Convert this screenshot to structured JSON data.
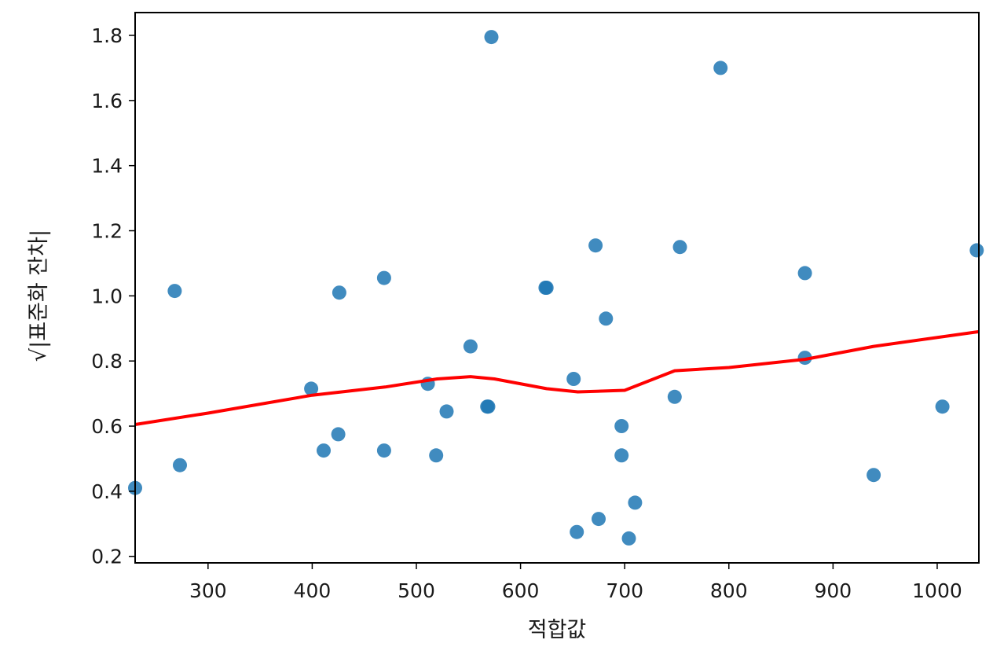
{
  "chart_data": {
    "type": "scatter",
    "title": "",
    "xlabel": "적합값",
    "ylabel": "√|표준화 잔차|",
    "xlim": [
      230,
      1040
    ],
    "ylim": [
      0.18,
      1.87
    ],
    "xticks": [
      300,
      400,
      500,
      600,
      700,
      800,
      900,
      1000
    ],
    "yticks": [
      0.2,
      0.4,
      0.6,
      0.8,
      1.0,
      1.2,
      1.4,
      1.6,
      1.8
    ],
    "xtick_labels": [
      "300",
      "400",
      "500",
      "600",
      "700",
      "800",
      "900",
      "1000"
    ],
    "ytick_labels": [
      "0.2",
      "0.4",
      "0.6",
      "0.8",
      "1.0",
      "1.2",
      "1.4",
      "1.6",
      "1.8"
    ],
    "grid": false,
    "point_color": "#1f77b4",
    "line_color": "#ff0000",
    "points": [
      {
        "x": 230,
        "y": 0.41
      },
      {
        "x": 268,
        "y": 1.015
      },
      {
        "x": 273,
        "y": 0.48
      },
      {
        "x": 399,
        "y": 0.715
      },
      {
        "x": 411,
        "y": 0.525
      },
      {
        "x": 425,
        "y": 0.575
      },
      {
        "x": 426,
        "y": 1.01
      },
      {
        "x": 469,
        "y": 1.055
      },
      {
        "x": 469,
        "y": 0.525
      },
      {
        "x": 511,
        "y": 0.73
      },
      {
        "x": 519,
        "y": 0.51
      },
      {
        "x": 529,
        "y": 0.645
      },
      {
        "x": 552,
        "y": 0.845
      },
      {
        "x": 568,
        "y": 0.66
      },
      {
        "x": 569,
        "y": 0.66
      },
      {
        "x": 572,
        "y": 1.795
      },
      {
        "x": 624,
        "y": 1.025
      },
      {
        "x": 625,
        "y": 1.025
      },
      {
        "x": 651,
        "y": 0.745
      },
      {
        "x": 654,
        "y": 0.275
      },
      {
        "x": 672,
        "y": 1.155
      },
      {
        "x": 675,
        "y": 0.315
      },
      {
        "x": 682,
        "y": 0.93
      },
      {
        "x": 697,
        "y": 0.6
      },
      {
        "x": 697,
        "y": 0.51
      },
      {
        "x": 704,
        "y": 0.255
      },
      {
        "x": 710,
        "y": 0.365
      },
      {
        "x": 748,
        "y": 0.69
      },
      {
        "x": 753,
        "y": 1.15
      },
      {
        "x": 792,
        "y": 1.7
      },
      {
        "x": 873,
        "y": 1.07
      },
      {
        "x": 873,
        "y": 0.81
      },
      {
        "x": 939,
        "y": 0.45
      },
      {
        "x": 1005,
        "y": 0.66
      },
      {
        "x": 1038,
        "y": 1.14
      }
    ],
    "lowess": [
      {
        "x": 230,
        "y": 0.605
      },
      {
        "x": 300,
        "y": 0.64
      },
      {
        "x": 400,
        "y": 0.695
      },
      {
        "x": 470,
        "y": 0.72
      },
      {
        "x": 520,
        "y": 0.745
      },
      {
        "x": 552,
        "y": 0.752
      },
      {
        "x": 575,
        "y": 0.745
      },
      {
        "x": 625,
        "y": 0.715
      },
      {
        "x": 655,
        "y": 0.705
      },
      {
        "x": 700,
        "y": 0.71
      },
      {
        "x": 748,
        "y": 0.77
      },
      {
        "x": 800,
        "y": 0.78
      },
      {
        "x": 873,
        "y": 0.805
      },
      {
        "x": 939,
        "y": 0.845
      },
      {
        "x": 1040,
        "y": 0.89
      }
    ]
  }
}
